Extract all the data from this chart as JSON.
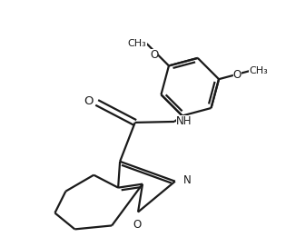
{
  "bg_color": "#ffffff",
  "line_color": "#1a1a1a",
  "line_width": 1.6,
  "font_size": 8.5,
  "fig_width": 3.15,
  "fig_height": 2.72,
  "xlim": [
    0,
    10
  ],
  "ylim": [
    0,
    8.63
  ]
}
